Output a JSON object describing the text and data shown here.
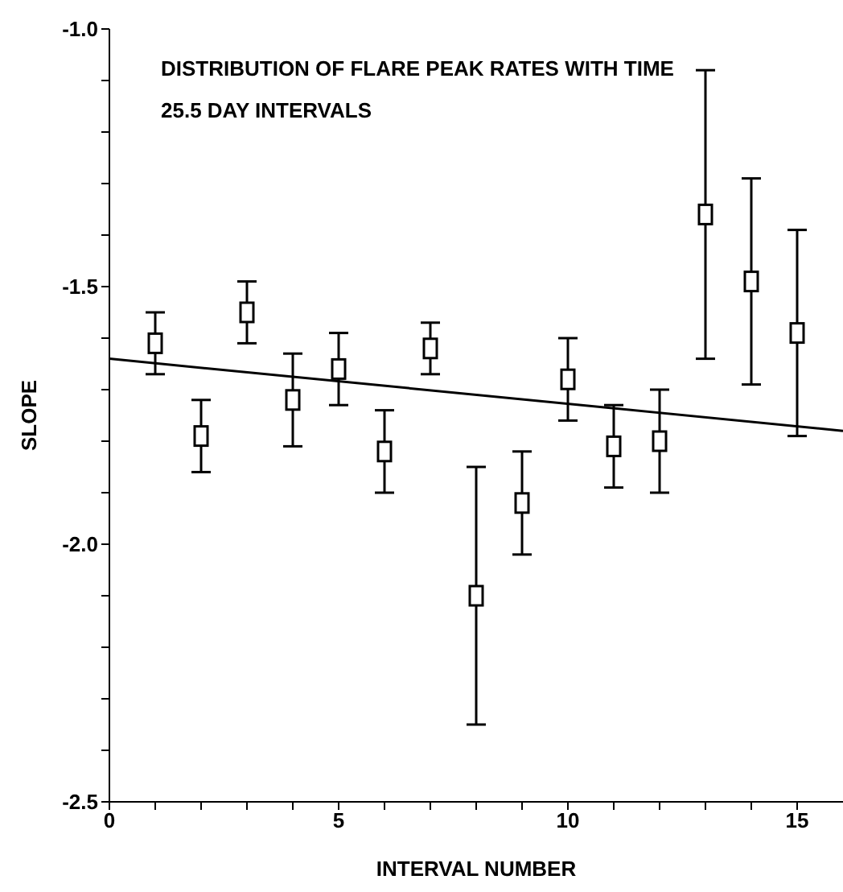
{
  "chart_data": {
    "type": "scatter",
    "title": "DISTRIBUTION OF FLARE PEAK RATES WITH TIME",
    "subtitle": "25.5 DAY INTERVALS",
    "xlabel": "INTERVAL NUMBER",
    "ylabel": "SLOPE",
    "x": [
      1,
      2,
      3,
      4,
      5,
      6,
      7,
      8,
      9,
      10,
      11,
      12,
      13,
      14,
      15
    ],
    "series": [
      {
        "color": "#000000",
        "marker": "square",
        "values": [
          -1.61,
          -1.79,
          -1.55,
          -1.72,
          -1.66,
          -1.82,
          -1.62,
          -2.1,
          -1.92,
          -1.68,
          -1.81,
          -1.8,
          -1.36,
          -1.49,
          -1.59
        ],
        "errors": [
          0.06,
          0.07,
          0.06,
          0.09,
          0.07,
          0.08,
          0.05,
          0.25,
          0.1,
          0.08,
          0.08,
          0.1,
          0.28,
          0.2,
          0.2
        ]
      },
      {
        "type": "line",
        "color": "#000000",
        "marker": "none",
        "line_style": "solid",
        "x": [
          0,
          16
        ],
        "values": [
          -1.64,
          -1.78
        ]
      }
    ],
    "xlim": [
      0,
      16
    ],
    "xticks": [
      0,
      {
        "value": 1,
        "label": null
      },
      {
        "value": 2,
        "label": null
      },
      {
        "value": 3,
        "label": null
      },
      {
        "value": 4,
        "label": null
      },
      5,
      {
        "value": 6,
        "label": null
      },
      {
        "value": 7,
        "label": null
      },
      {
        "value": 8,
        "label": null
      },
      {
        "value": 9,
        "label": null
      },
      10,
      {
        "value": 11,
        "label": null
      },
      {
        "value": 12,
        "label": null
      },
      {
        "value": 13,
        "label": null
      },
      {
        "value": 14,
        "label": null
      },
      15
    ],
    "ylim": [
      -2.5,
      -1.0
    ],
    "yticks": [
      {
        "value": -2.5,
        "label": "-2.5"
      },
      {
        "value": -2.4,
        "label": null
      },
      {
        "value": -2.3,
        "label": null
      },
      {
        "value": -2.2,
        "label": null
      },
      {
        "value": -2.1,
        "label": null
      },
      {
        "value": -2.0,
        "label": "-2.0"
      },
      {
        "value": -1.9,
        "label": null
      },
      {
        "value": -1.8,
        "label": null
      },
      {
        "value": -1.7,
        "label": null
      },
      {
        "value": -1.6,
        "label": null
      },
      {
        "value": -1.5,
        "label": "-1.5"
      },
      {
        "value": -1.4,
        "label": null
      },
      {
        "value": -1.3,
        "label": null
      },
      {
        "value": -1.2,
        "label": null
      },
      {
        "value": -1.1,
        "label": null
      },
      {
        "value": -1.0,
        "label": "-1.0"
      }
    ],
    "grid": false,
    "legend": false
  }
}
